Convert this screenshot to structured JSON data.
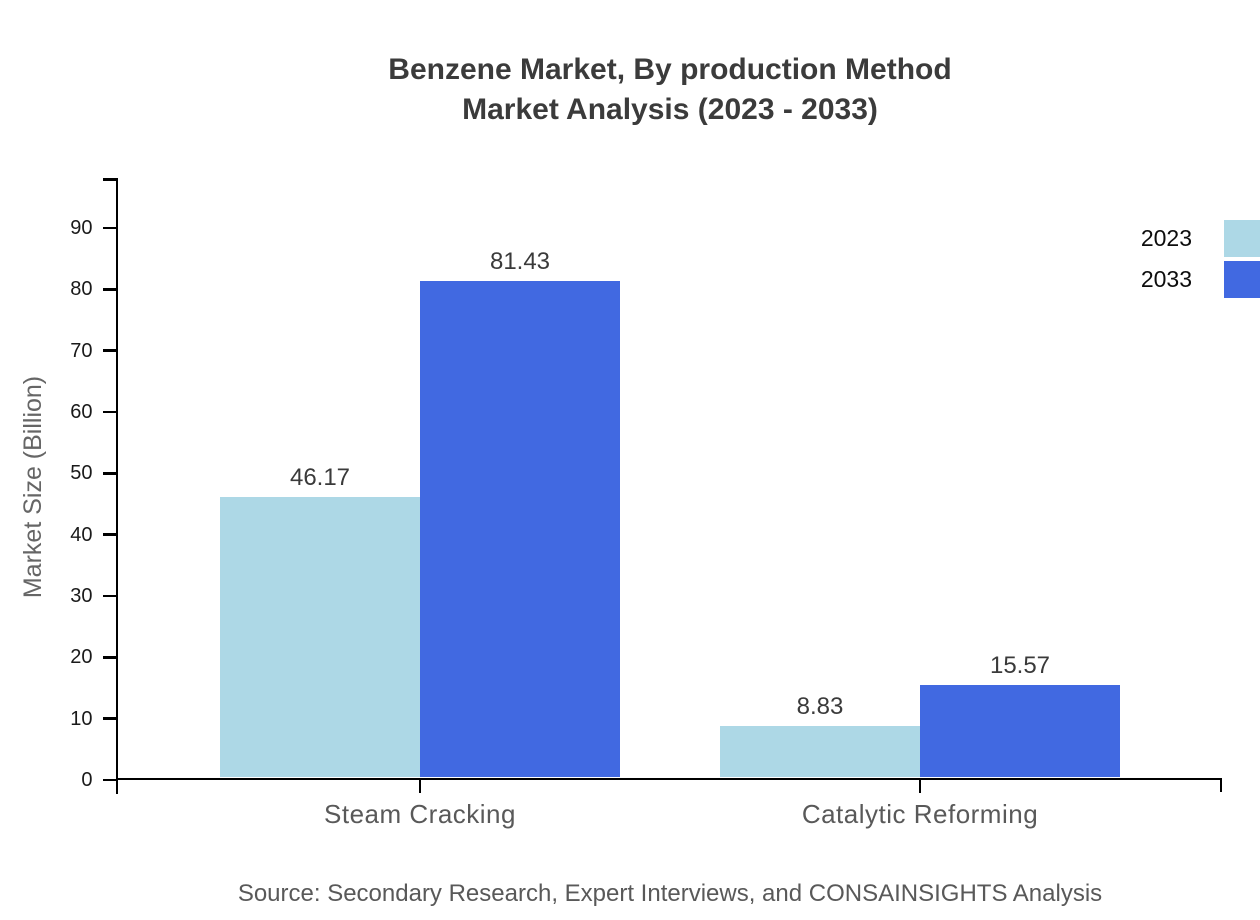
{
  "chart_data": {
    "type": "bar",
    "title": "Benzene Market, By production Method",
    "subtitle": "Market Analysis (2023 - 2033)",
    "categories": [
      "Steam Cracking",
      "Catalytic Reforming"
    ],
    "series": [
      {
        "name": "2023",
        "color": "#ADD8E6",
        "values": [
          46.17,
          8.83
        ]
      },
      {
        "name": "2033",
        "color": "#4169E1",
        "values": [
          81.43,
          15.57
        ]
      }
    ],
    "value_labels": [
      [
        "46.17",
        "8.83"
      ],
      [
        "81.43",
        "15.57"
      ]
    ],
    "xlabel": "",
    "ylabel": "Market Size (Billion)",
    "ylim": [
      0,
      98
    ],
    "yticks": [
      0,
      10,
      20,
      30,
      40,
      50,
      60,
      70,
      80,
      90
    ],
    "grid": false,
    "legend_position": "top-right-outside",
    "axis_color": "#000000",
    "source": "Source: Secondary Research, Expert Interviews, and CONSAINSIGHTS Analysis"
  }
}
